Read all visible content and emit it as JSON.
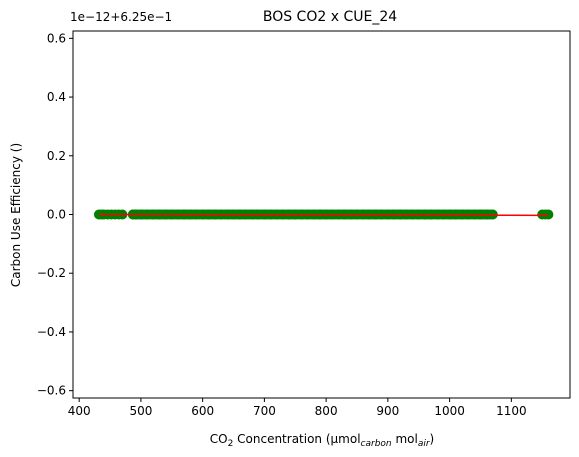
{
  "chart_data": {
    "type": "scatter",
    "title": "BOS CO2 x CUE_24",
    "xlabel": {
      "prefix": "CO",
      "prefix_sub": "2",
      "middle": " Concentration (µmol",
      "unit_sub_1": "carbon",
      "mid2": " mol",
      "unit_sub_2": "air",
      "suffix": ")"
    },
    "ylabel": "Carbon Use Efficiency ()",
    "offset_text": "1e−12+6.25e−1",
    "xlim": [
      390,
      1195
    ],
    "ylim": [
      -0.625,
      0.625
    ],
    "xticks": [
      400,
      500,
      600,
      700,
      800,
      900,
      1000,
      1100
    ],
    "yticks": [
      -0.6,
      -0.4,
      -0.2,
      0.0,
      0.2,
      0.4,
      0.6
    ],
    "ytick_labels": [
      "−0.6",
      "−0.4",
      "−0.2",
      "0.0",
      "0.2",
      "0.4",
      "0.6"
    ],
    "scatter_color": "#008000",
    "line_color": "#ff0000",
    "x": [
      432,
      436,
      440,
      446,
      452,
      458,
      464,
      470,
      487,
      492,
      500,
      510,
      520,
      530,
      540,
      550,
      560,
      570,
      580,
      590,
      600,
      610,
      620,
      630,
      640,
      650,
      660,
      670,
      680,
      690,
      700,
      710,
      720,
      730,
      740,
      750,
      760,
      770,
      780,
      790,
      800,
      810,
      820,
      830,
      840,
      850,
      860,
      870,
      880,
      890,
      900,
      910,
      920,
      930,
      940,
      950,
      960,
      970,
      980,
      990,
      1000,
      1010,
      1020,
      1030,
      1040,
      1050,
      1060,
      1070,
      1150,
      1155,
      1160
    ],
    "y": [
      0,
      0,
      0,
      0,
      0,
      0,
      0,
      0,
      0,
      0,
      0,
      0,
      0,
      0,
      0,
      0,
      0,
      0,
      0,
      0,
      0,
      0,
      0,
      0,
      0,
      0,
      0,
      0,
      0,
      0,
      0,
      0,
      0,
      0,
      0,
      0,
      0,
      0,
      0,
      0,
      0,
      0,
      0,
      0,
      0,
      0,
      0,
      0,
      0,
      0,
      0,
      0,
      0,
      0,
      0,
      0,
      0,
      0,
      0,
      0,
      0,
      0,
      0,
      0,
      0,
      0,
      0,
      0,
      0,
      0,
      0
    ],
    "fit_line": {
      "x": [
        432,
        1160
      ],
      "y": [
        0.0,
        -0.003
      ]
    },
    "grid": false
  }
}
